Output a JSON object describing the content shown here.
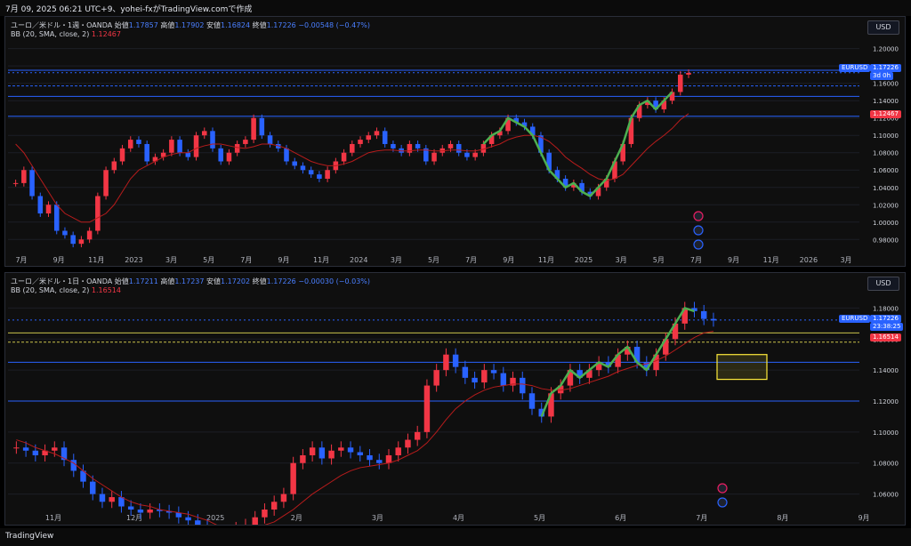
{
  "header": {
    "title": "7月 09, 2025 06:21 UTC+9、yohei-fxがTradingView.comで作成"
  },
  "footer": {
    "logo": "TradingView"
  },
  "panes": [
    {
      "title": "ユーロ／米ドル・1週・OANDA",
      "ohlc": {
        "o_label": "始値",
        "o": "1.17857",
        "h_label": "高値",
        "h": "1.17902",
        "l_label": "安値",
        "l": "1.16824",
        "c_label": "終値",
        "c": "1.17226",
        "chg": "−0.00548 (−0.47%)"
      },
      "indicator": {
        "label": "BB (20, SMA, close, 2)",
        "value": "1.12467"
      },
      "currency": "USD",
      "price_tag": {
        "symbol": "EURUSD",
        "price": "1.17226",
        "countdown": "3d 0h"
      },
      "bb_tag": "1.12467"
    },
    {
      "title": "ユーロ／米ドル・1日・OANDA",
      "ohlc": {
        "o_label": "始値",
        "o": "1.17211",
        "h_label": "高値",
        "h": "1.17237",
        "l_label": "安値",
        "l": "1.17202",
        "c_label": "終値",
        "c": "1.17226",
        "chg": "−0.00030 (−0.03%)"
      },
      "indicator": {
        "label": "BB (20, SMA, close, 2)",
        "value": "1.16514"
      },
      "currency": "USD",
      "price_tag": {
        "symbol": "EURUSD",
        "price": "1.17226",
        "countdown": "23:38:25"
      },
      "bb_tag": "1.16514"
    }
  ],
  "colors": {
    "up": "#f23645",
    "down": "#2962ff",
    "bb_basis": "#b71c1c",
    "wave": "#4caf50",
    "hline": "#2962ff",
    "zone": "#ffeb3b",
    "yline": "#c9c24a"
  },
  "chart_data": [
    {
      "type": "candlestick",
      "title": "ユーロ／米ドル・1週・OANDA",
      "x_ticks": [
        "7月",
        "9月",
        "11月",
        "2023",
        "3月",
        "5月",
        "7月",
        "9月",
        "11月",
        "2024",
        "3月",
        "5月",
        "7月",
        "9月",
        "11月",
        "2025",
        "3月",
        "5月",
        "7月",
        "9月",
        "11月",
        "2026",
        "3月"
      ],
      "y_ticks": [
        "1.20000",
        "1.18000",
        "1.16000",
        "1.14000",
        "1.12000",
        "1.10000",
        "1.08000",
        "1.06000",
        "1.04000",
        "1.02000",
        "1.00000",
        "0.98000"
      ],
      "ylim": [
        0.968,
        1.214
      ],
      "close_path": [
        1.045,
        1.06,
        1.03,
        1.01,
        1.02,
        0.99,
        0.985,
        0.975,
        0.98,
        0.99,
        1.03,
        1.06,
        1.07,
        1.085,
        1.095,
        1.09,
        1.07,
        1.075,
        1.08,
        1.095,
        1.08,
        1.075,
        1.1,
        1.105,
        1.085,
        1.07,
        1.08,
        1.09,
        1.095,
        1.12,
        1.1,
        1.09,
        1.085,
        1.07,
        1.065,
        1.06,
        1.055,
        1.05,
        1.06,
        1.07,
        1.08,
        1.09,
        1.095,
        1.1,
        1.105,
        1.09,
        1.085,
        1.08,
        1.09,
        1.085,
        1.07,
        1.08,
        1.085,
        1.09,
        1.08,
        1.075,
        1.08,
        1.09,
        1.1,
        1.105,
        1.12,
        1.115,
        1.11,
        1.1,
        1.08,
        1.06,
        1.05,
        1.04,
        1.045,
        1.035,
        1.03,
        1.04,
        1.05,
        1.07,
        1.09,
        1.12,
        1.135,
        1.14,
        1.13,
        1.14,
        1.15,
        1.17,
        1.172
      ],
      "bb_basis": [
        1.09,
        1.08,
        1.065,
        1.05,
        1.035,
        1.02,
        1.01,
        1.005,
        1.0,
        1.0,
        1.005,
        1.01,
        1.02,
        1.035,
        1.05,
        1.06,
        1.065,
        1.07,
        1.075,
        1.078,
        1.08,
        1.08,
        1.085,
        1.088,
        1.09,
        1.09,
        1.088,
        1.086,
        1.085,
        1.087,
        1.09,
        1.09,
        1.088,
        1.085,
        1.08,
        1.075,
        1.07,
        1.067,
        1.065,
        1.065,
        1.067,
        1.07,
        1.075,
        1.08,
        1.082,
        1.083,
        1.083,
        1.082,
        1.082,
        1.083,
        1.083,
        1.082,
        1.082,
        1.083,
        1.083,
        1.082,
        1.082,
        1.084,
        1.087,
        1.09,
        1.095,
        1.098,
        1.1,
        1.1,
        1.098,
        1.093,
        1.085,
        1.075,
        1.068,
        1.062,
        1.055,
        1.05,
        1.048,
        1.05,
        1.055,
        1.065,
        1.075,
        1.085,
        1.093,
        1.1,
        1.108,
        1.118,
        1.125
      ],
      "horizontal_levels": [
        1.175,
        1.157,
        1.145,
        1.122
      ],
      "last_price": 1.17226
    },
    {
      "type": "candlestick",
      "title": "ユーロ／米ドル・1日・OANDA",
      "x_ticks": [
        "11月",
        "12月",
        "2025",
        "2月",
        "3月",
        "4月",
        "5月",
        "6月",
        "7月",
        "8月",
        "9月"
      ],
      "y_ticks": [
        "1.18000",
        "1.16000",
        "1.14000",
        "1.12000",
        "1.10000",
        "1.08000",
        "1.06000"
      ],
      "ylim": [
        1.05,
        1.19
      ],
      "close_path": [
        1.09,
        1.088,
        1.085,
        1.088,
        1.09,
        1.082,
        1.075,
        1.068,
        1.06,
        1.055,
        1.058,
        1.052,
        1.05,
        1.048,
        1.05,
        1.049,
        1.048,
        1.045,
        1.043,
        1.04,
        1.035,
        1.03,
        1.033,
        1.038,
        1.04,
        1.045,
        1.05,
        1.055,
        1.06,
        1.08,
        1.085,
        1.09,
        1.083,
        1.088,
        1.09,
        1.087,
        1.085,
        1.082,
        1.08,
        1.085,
        1.09,
        1.095,
        1.1,
        1.13,
        1.14,
        1.15,
        1.142,
        1.135,
        1.132,
        1.14,
        1.138,
        1.13,
        1.135,
        1.125,
        1.115,
        1.11,
        1.125,
        1.13,
        1.14,
        1.135,
        1.14,
        1.145,
        1.142,
        1.15,
        1.155,
        1.145,
        1.14,
        1.15,
        1.16,
        1.17,
        1.18,
        1.178,
        1.173,
        1.172
      ],
      "bb_basis": [
        1.095,
        1.093,
        1.09,
        1.088,
        1.086,
        1.083,
        1.08,
        1.075,
        1.07,
        1.066,
        1.062,
        1.058,
        1.055,
        1.053,
        1.052,
        1.05,
        1.049,
        1.048,
        1.047,
        1.045,
        1.043,
        1.04,
        1.038,
        1.037,
        1.037,
        1.038,
        1.04,
        1.042,
        1.046,
        1.05,
        1.055,
        1.06,
        1.064,
        1.068,
        1.072,
        1.075,
        1.077,
        1.078,
        1.079,
        1.08,
        1.082,
        1.085,
        1.088,
        1.093,
        1.1,
        1.108,
        1.115,
        1.12,
        1.124,
        1.127,
        1.129,
        1.13,
        1.131,
        1.131,
        1.13,
        1.128,
        1.127,
        1.127,
        1.128,
        1.13,
        1.132,
        1.134,
        1.136,
        1.139,
        1.141,
        1.143,
        1.144,
        1.146,
        1.149,
        1.153,
        1.157,
        1.161,
        1.164,
        1.165
      ],
      "horizontal_levels": [
        1.164,
        1.158,
        1.145,
        1.12
      ],
      "zone": {
        "from": 1.134,
        "to": 1.15
      },
      "last_price": 1.17226
    }
  ]
}
